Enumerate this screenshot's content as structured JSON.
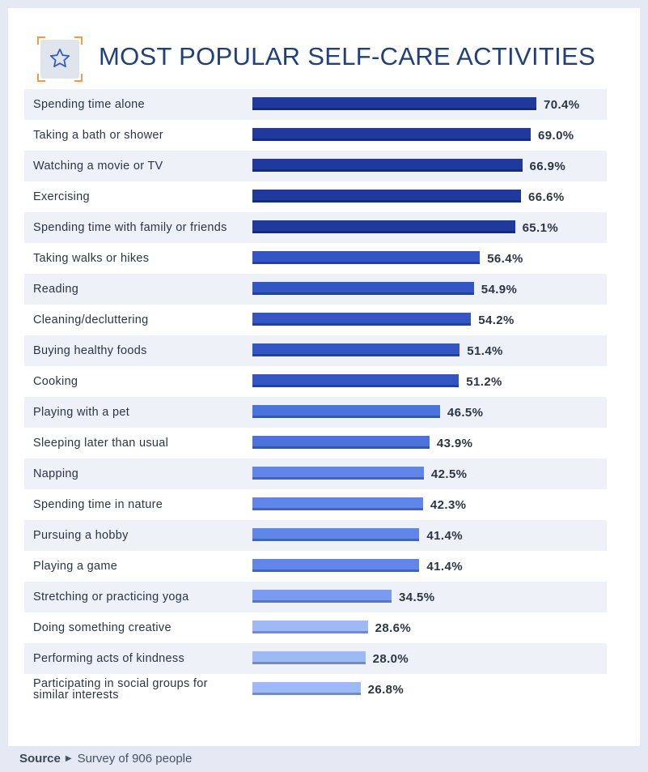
{
  "header": {
    "title": "MOST POPULAR SELF-CARE ACTIVITIES",
    "icon": "star-icon",
    "accent_color": "#1f3f7d",
    "corner_color": "#f29a4a"
  },
  "chart_data": {
    "type": "bar",
    "orientation": "horizontal",
    "title": "MOST POPULAR SELF-CARE ACTIVITIES",
    "unit": "%",
    "xlim": [
      0,
      100
    ],
    "categories": [
      "Spending time alone",
      "Taking a bath or shower",
      "Watching a movie or TV",
      "Exercising",
      "Spending time with family or friends",
      "Taking walks or hikes",
      "Reading",
      "Cleaning/decluttering",
      "Buying healthy foods",
      "Cooking",
      "Playing with a pet",
      "Sleeping later than usual",
      "Napping",
      "Spending time in nature",
      "Pursuing a hobby",
      "Playing a game",
      "Stretching or practicing yoga",
      "Doing something creative",
      "Performing acts of kindness",
      "Participating in social groups for similar interests"
    ],
    "values": [
      70.4,
      69.0,
      66.9,
      66.6,
      65.1,
      56.4,
      54.9,
      54.2,
      51.4,
      51.2,
      46.5,
      43.9,
      42.5,
      42.3,
      41.4,
      41.4,
      34.5,
      28.6,
      28.0,
      26.8
    ],
    "value_labels": [
      "70.4%",
      "69.0%",
      "66.9%",
      "66.6%",
      "65.1%",
      "56.4%",
      "54.9%",
      "54.2%",
      "51.4%",
      "51.2%",
      "46.5%",
      "43.9%",
      "42.5%",
      "42.3%",
      "41.4%",
      "41.4%",
      "34.5%",
      "28.6%",
      "28.0%",
      "26.8%"
    ],
    "bar_colors": [
      "#1f3a9c",
      "#1f3a9c",
      "#1f3a9c",
      "#1f3a9c",
      "#1f3a9c",
      "#3356c4",
      "#3356c4",
      "#3356c4",
      "#3356c4",
      "#3356c4",
      "#4c72dc",
      "#4c72dc",
      "#5f86e8",
      "#5f86e8",
      "#5f86e8",
      "#5f86e8",
      "#7a9cf0",
      "#9dbaf7",
      "#9dbaf7",
      "#9dbaf7"
    ],
    "shaded_rows": "alternating",
    "grid": false,
    "legend": "none"
  },
  "footer": {
    "source_label": "Source",
    "source_text": "Survey of 906 people",
    "arrow_icon": "triangle-right-icon"
  }
}
